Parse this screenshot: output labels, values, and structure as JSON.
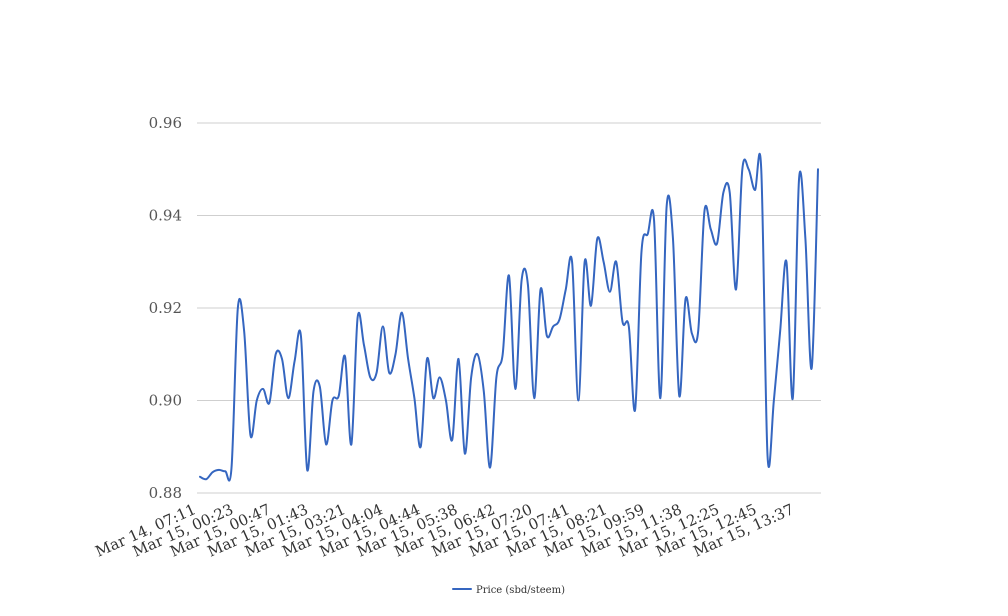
{
  "chart_data": {
    "type": "line",
    "colors": {
      "series": "#3566c0",
      "grid": "#cfcfcf"
    },
    "ylim": [
      0.88,
      0.96
    ],
    "yticks": [
      "0.88",
      "0.90",
      "0.92",
      "0.94",
      "0.96"
    ],
    "xticks": [
      "Mar 14, 07:11",
      "Mar 15, 00:23",
      "Mar 15, 00:47",
      "Mar 15, 01:43",
      "Mar 15, 03:21",
      "Mar 15, 04:04",
      "Mar 15, 04:44",
      "Mar 15, 05:38",
      "Mar 15, 06:42",
      "Mar 15, 07:20",
      "Mar 15, 07:41",
      "Mar 15, 08:21",
      "Mar 15, 09:59",
      "Mar 15, 11:38",
      "Mar 15, 12:25",
      "Mar 15, 12:45",
      "Mar 15, 13:37"
    ],
    "grid": true,
    "legend_position": "bottom",
    "series": [
      {
        "name": "Price (sbd/steem)",
        "values": [
          0.8835,
          0.883,
          0.8845,
          0.885,
          0.8847,
          0.8855,
          0.92,
          0.915,
          0.8925,
          0.9,
          0.9025,
          0.8995,
          0.91,
          0.909,
          0.9005,
          0.9085,
          0.914,
          0.885,
          0.902,
          0.903,
          0.8905,
          0.9,
          0.901,
          0.9095,
          0.8905,
          0.918,
          0.912,
          0.905,
          0.906,
          0.916,
          0.906,
          0.91,
          0.919,
          0.909,
          0.9005,
          0.89,
          0.909,
          0.9005,
          0.905,
          0.9,
          0.8915,
          0.909,
          0.8885,
          0.905,
          0.91,
          0.902,
          0.8855,
          0.905,
          0.91,
          0.927,
          0.9025,
          0.926,
          0.925,
          0.9005,
          0.924,
          0.914,
          0.916,
          0.9175,
          0.924,
          0.93,
          0.9,
          0.93,
          0.9205,
          0.935,
          0.93,
          0.9235,
          0.93,
          0.917,
          0.916,
          0.898,
          0.932,
          0.936,
          0.939,
          0.9005,
          0.942,
          0.935,
          0.901,
          0.922,
          0.9145,
          0.915,
          0.941,
          0.937,
          0.934,
          0.945,
          0.945,
          0.924,
          0.95,
          0.95,
          0.9455,
          0.95,
          0.888,
          0.9,
          0.915,
          0.93,
          0.9005,
          0.948,
          0.935,
          0.907,
          0.95
        ]
      }
    ]
  }
}
